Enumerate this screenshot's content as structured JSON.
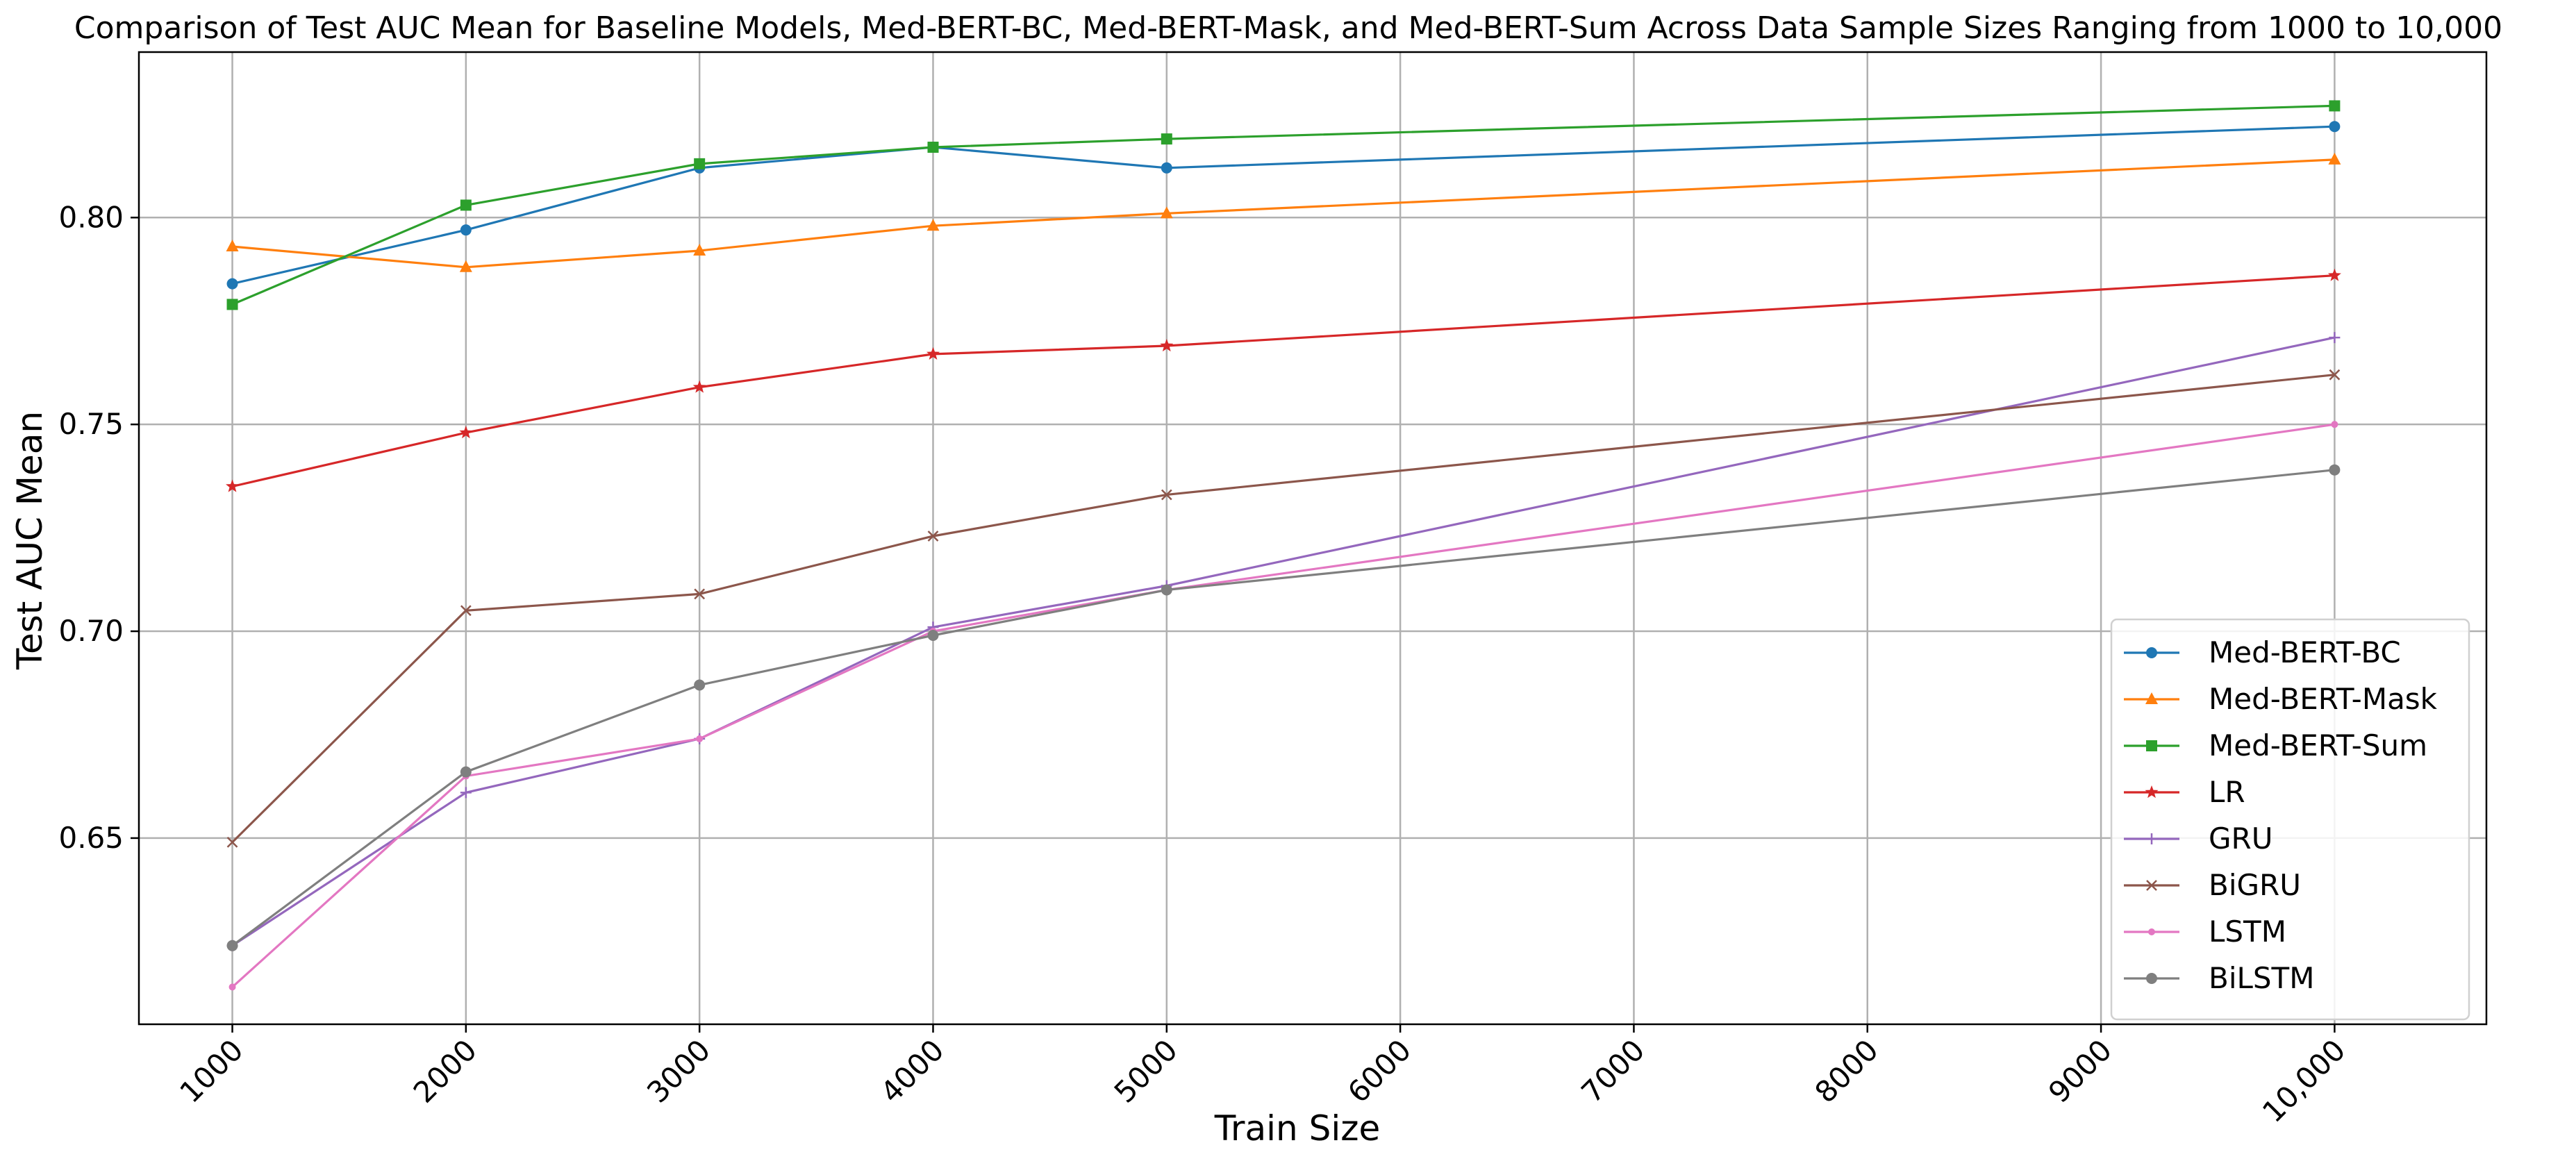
{
  "chart_data": {
    "type": "line",
    "title": "Comparison of Test AUC Mean for Baseline Models, Med-BERT-BC, Med-BERT-Mask, and Med-BERT-Sum Across Data Sample Sizes Ranging from 1000 to 10,000",
    "xlabel": "Train Size",
    "ylabel": "Test AUC Mean",
    "categories": [
      "1000",
      "2000",
      "3000",
      "4000",
      "5000",
      "6000",
      "7000",
      "8000",
      "9000",
      "10,000"
    ],
    "x": [
      1000,
      2000,
      3000,
      4000,
      5000,
      10000
    ],
    "yticks": [
      "0.65",
      "0.70",
      "0.75",
      "0.80"
    ],
    "ytick_values": [
      0.65,
      0.7,
      0.75,
      0.8
    ],
    "ylim": [
      0.605,
      0.84
    ],
    "grid": true,
    "legend_position": "lower right",
    "series": [
      {
        "name": "Med-BERT-BC",
        "color": "#1f77b4",
        "marker": "circle",
        "values": [
          0.784,
          0.797,
          0.812,
          0.817,
          0.812,
          0.822
        ]
      },
      {
        "name": "Med-BERT-Mask",
        "color": "#ff7f0e",
        "marker": "triangle",
        "values": [
          0.793,
          0.788,
          0.792,
          0.798,
          0.801,
          0.814
        ]
      },
      {
        "name": "Med-BERT-Sum",
        "color": "#2ca02c",
        "marker": "square",
        "values": [
          0.779,
          0.803,
          0.813,
          0.817,
          0.819,
          0.827
        ]
      },
      {
        "name": "LR",
        "color": "#d62728",
        "marker": "star",
        "values": [
          0.735,
          0.748,
          0.759,
          0.767,
          0.769,
          0.786
        ]
      },
      {
        "name": "GRU",
        "color": "#9467bd",
        "marker": "plus",
        "values": [
          0.624,
          0.661,
          0.674,
          0.701,
          0.711,
          0.771
        ]
      },
      {
        "name": "BiGRU",
        "color": "#8c564b",
        "marker": "x",
        "values": [
          0.649,
          0.705,
          0.709,
          0.723,
          0.733,
          0.762
        ]
      },
      {
        "name": "LSTM",
        "color": "#e377c2",
        "marker": "dot",
        "values": [
          0.614,
          0.665,
          0.674,
          0.7,
          0.71,
          0.75
        ]
      },
      {
        "name": "BiLSTM",
        "color": "#7f7f7f",
        "marker": "circle",
        "values": [
          0.624,
          0.666,
          0.687,
          0.699,
          0.71,
          0.739
        ]
      }
    ]
  }
}
